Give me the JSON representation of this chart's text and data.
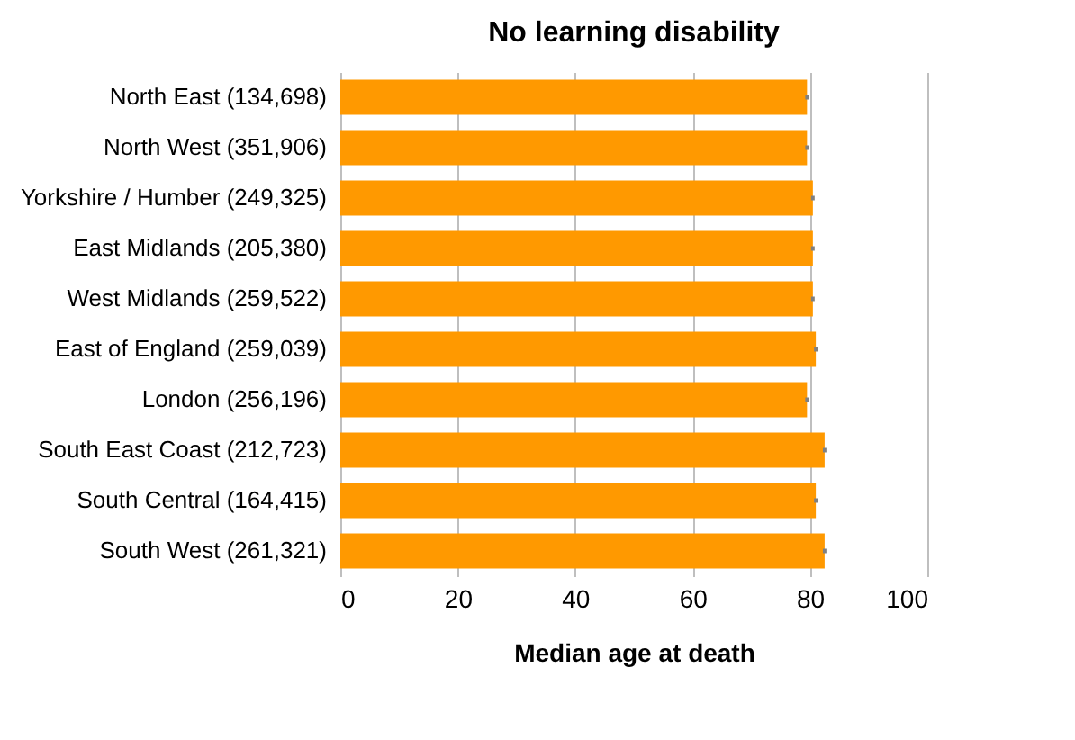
{
  "chart_data": {
    "type": "bar",
    "orientation": "horizontal",
    "title": "No learning disability",
    "xlabel": "Median age at death",
    "categories": [
      "North East (134,698)",
      "North West (351,906)",
      "Yorkshire / Humber (249,325)",
      "East Midlands (205,380)",
      "West Midlands (259,522)",
      "East of England (259,039)",
      "London (256,196)",
      "South East Coast (212,723)",
      "South Central (164,415)",
      "South West (261,321)"
    ],
    "values": [
      79.5,
      79.5,
      80.5,
      80.5,
      80.5,
      81,
      79.5,
      82.5,
      81,
      82.5
    ],
    "errors": [
      0.3,
      0.3,
      0.3,
      0.3,
      0.3,
      0.3,
      0.3,
      0.3,
      0.3,
      0.3
    ],
    "color": "#ff9900",
    "xlim": [
      0,
      100
    ],
    "xticks": [
      0,
      20,
      40,
      60,
      80,
      100
    ],
    "grid": "x"
  }
}
